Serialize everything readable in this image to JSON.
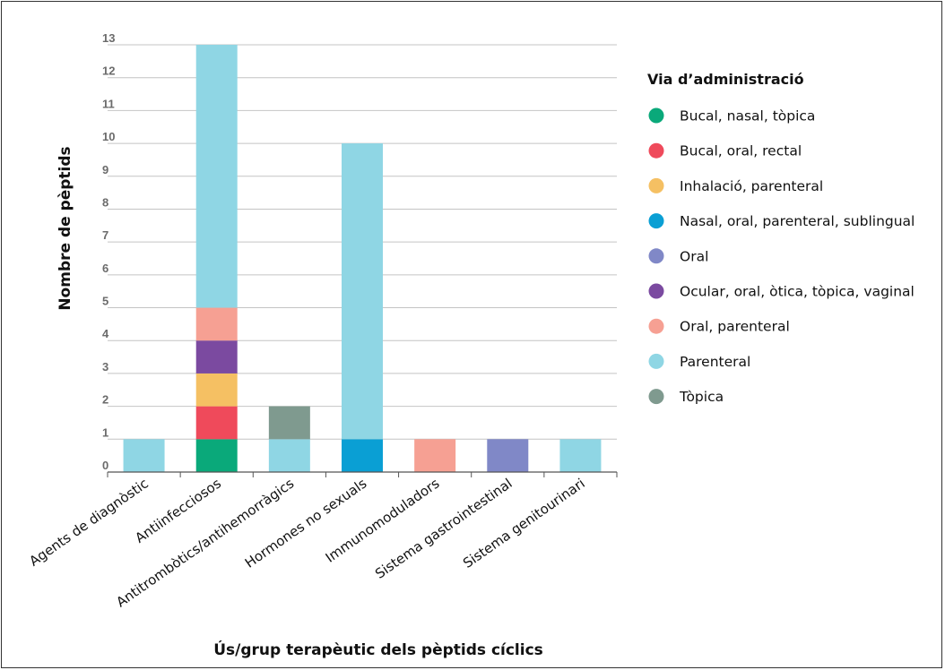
{
  "chart_data": {
    "type": "bar",
    "stacked": true,
    "xlabel": "Ús/grup terapèutic dels pèptids cíclics",
    "ylabel": "Nombre de pèptids",
    "ylim": [
      0,
      13
    ],
    "yticks": [
      0,
      1,
      2,
      3,
      4,
      5,
      6,
      7,
      8,
      9,
      10,
      11,
      12,
      13
    ],
    "grid": true,
    "legend_position": "right",
    "legend_title": "Via d’administració",
    "categories": [
      "Agents de diagnòstic",
      "Antiinfecciosos",
      "Antitrombòtics/antihemorràgics",
      "Hormones no sexuals",
      "Immunomoduladors",
      "Sistema gastrointestinal",
      "Sistema genitourinari"
    ],
    "series": [
      {
        "name": "Bucal, nasal, tòpica",
        "color": "#0aa97a",
        "values": [
          0,
          1,
          0,
          0,
          0,
          0,
          0
        ]
      },
      {
        "name": "Bucal, oral, rectal",
        "color": "#ef4a5b",
        "values": [
          0,
          1,
          0,
          0,
          0,
          0,
          0
        ]
      },
      {
        "name": "Inhalació, parenteral",
        "color": "#f5c063",
        "values": [
          0,
          1,
          0,
          0,
          0,
          0,
          0
        ]
      },
      {
        "name": "Nasal, oral, parenteral, sublingual",
        "color": "#0a9fd4",
        "values": [
          0,
          0,
          0,
          1,
          0,
          0,
          0
        ]
      },
      {
        "name": "Oral",
        "color": "#8088c7",
        "values": [
          0,
          0,
          0,
          0,
          0,
          1,
          0
        ]
      },
      {
        "name": "Ocular, oral, òtica, tòpica, vaginal",
        "color": "#7b4aa0",
        "values": [
          0,
          1,
          0,
          0,
          0,
          0,
          0
        ]
      },
      {
        "name": "Oral, parenteral",
        "color": "#f6a093",
        "values": [
          0,
          1,
          0,
          0,
          1,
          0,
          0
        ]
      },
      {
        "name": "Parenteral",
        "color": "#8fd6e4",
        "values": [
          1,
          8,
          1,
          9,
          0,
          0,
          1
        ]
      },
      {
        "name": "Tòpica",
        "color": "#7f9a8f",
        "values": [
          0,
          0,
          1,
          0,
          0,
          0,
          0
        ]
      }
    ]
  }
}
